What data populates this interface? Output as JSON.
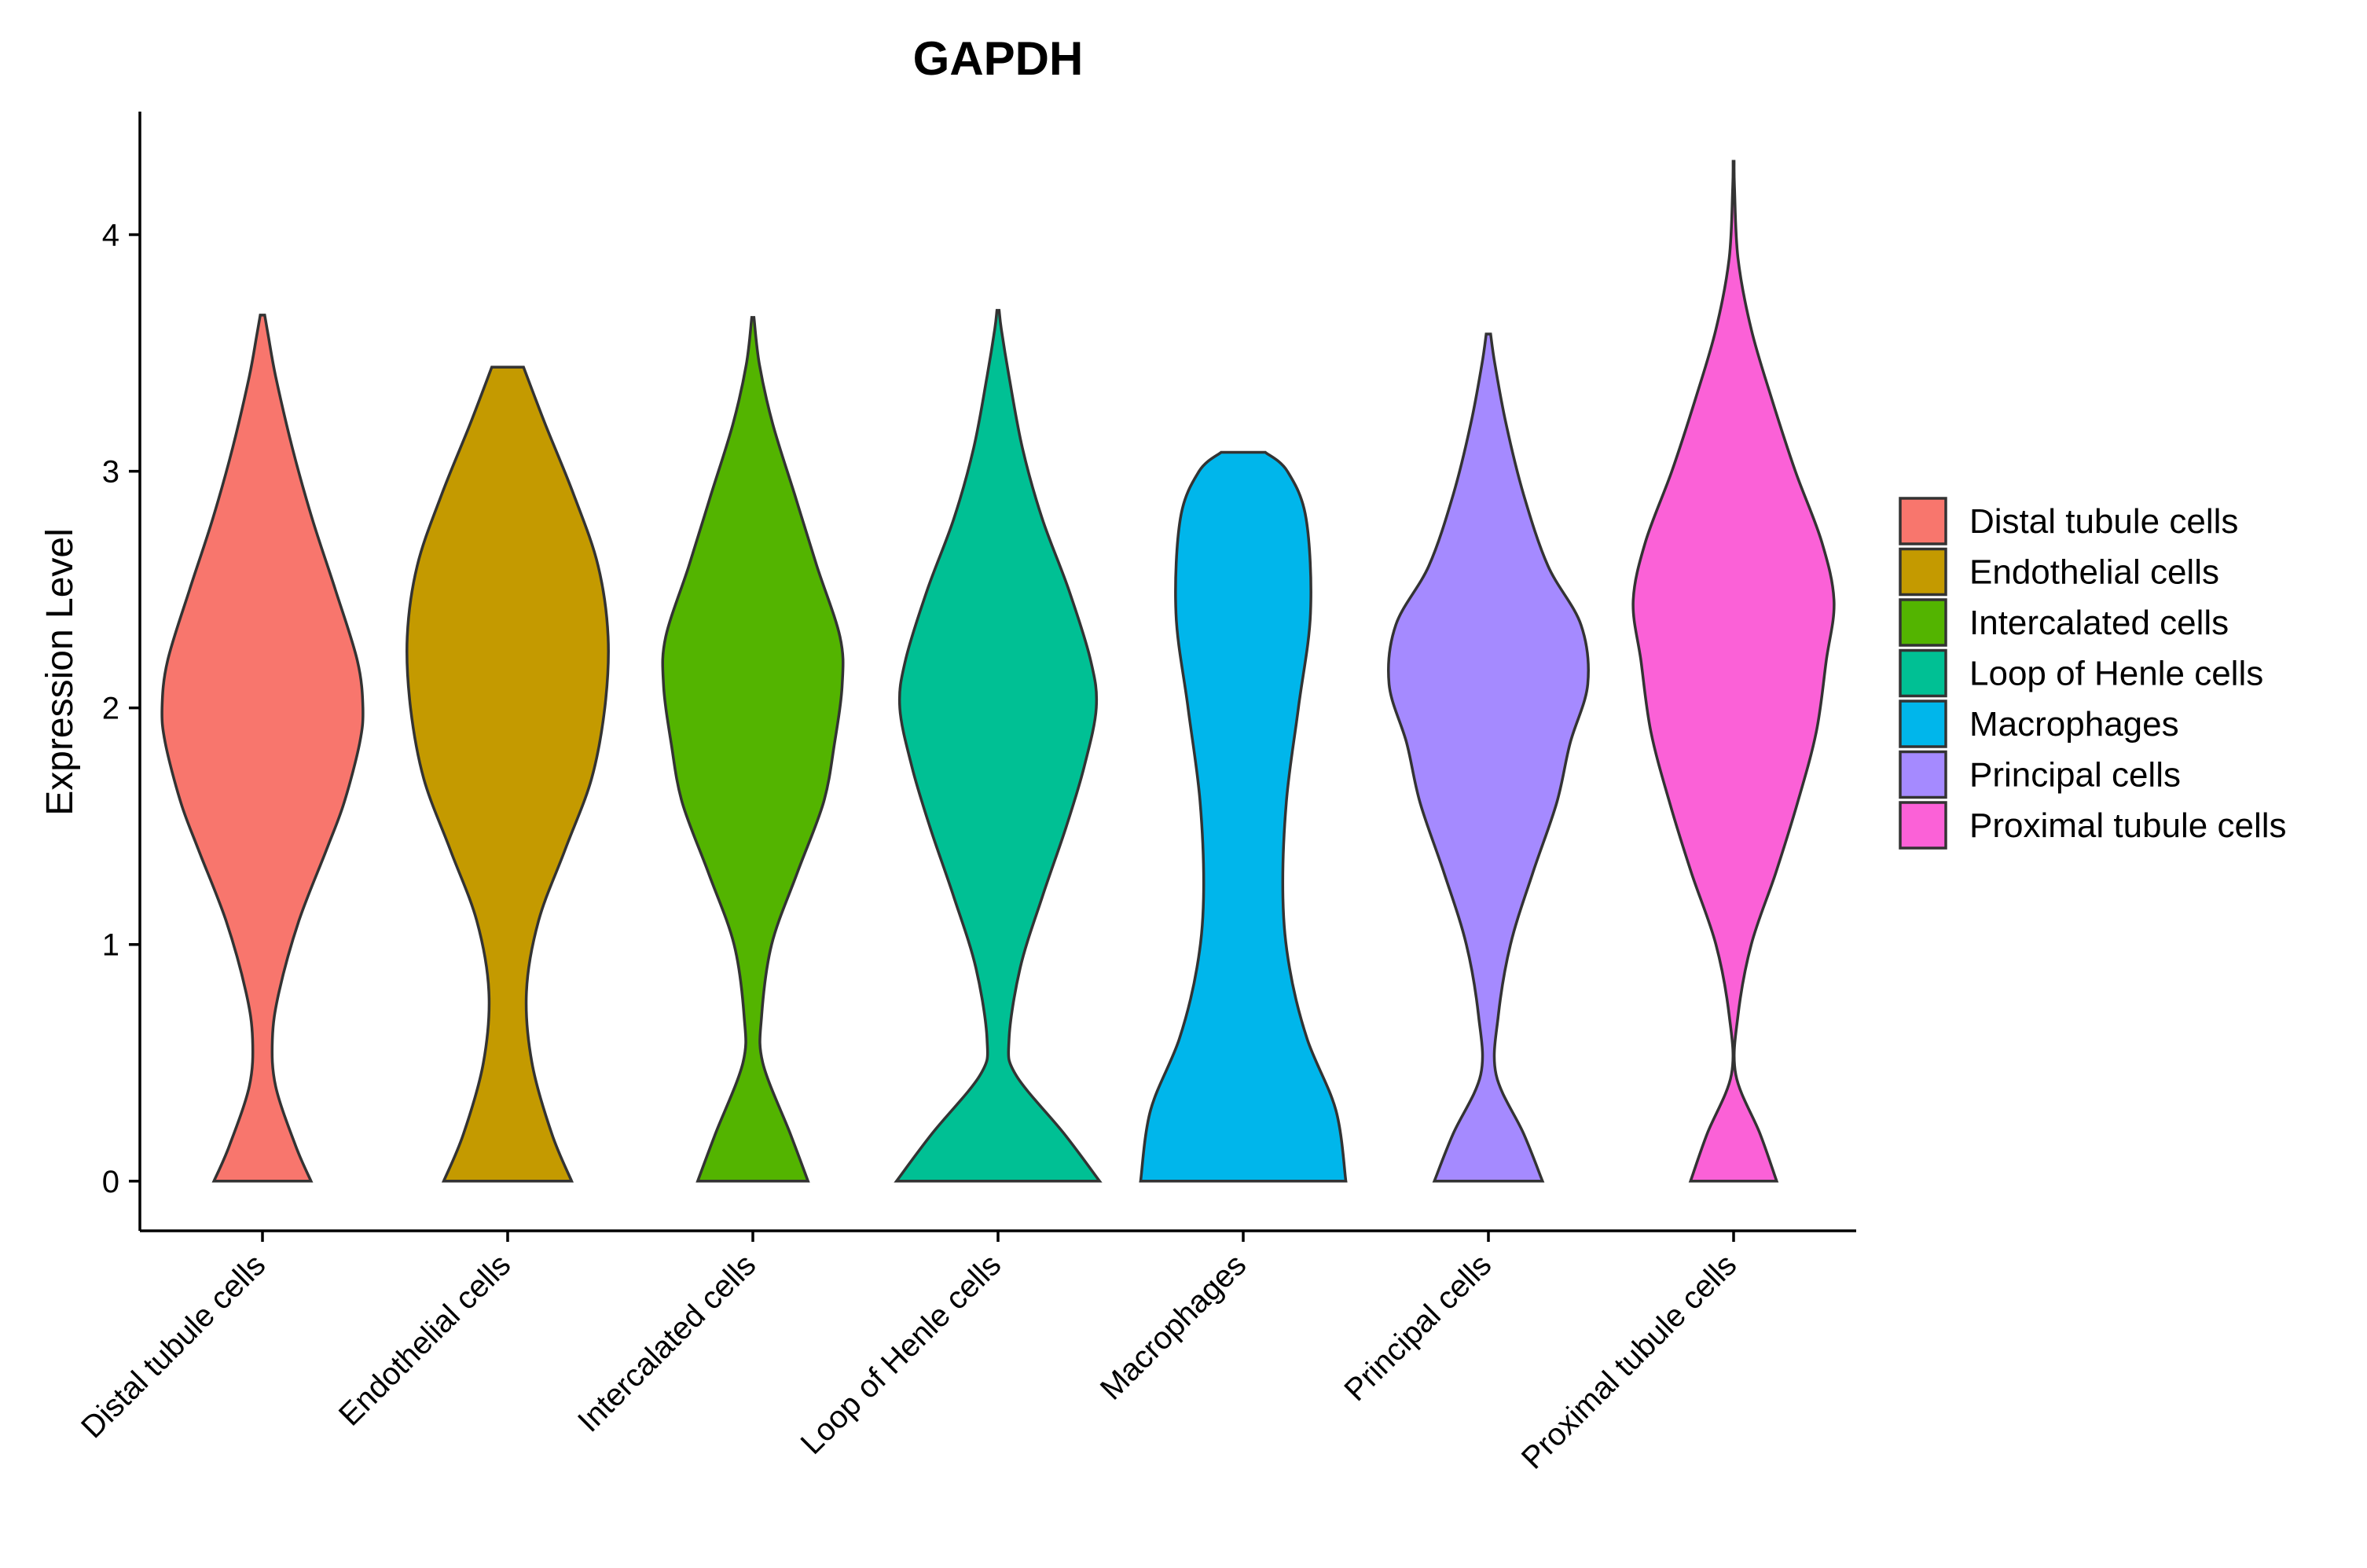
{
  "chart_data": {
    "type": "violin",
    "title": "GAPDH",
    "xlabel": "",
    "ylabel": "Expression Level",
    "ylim": [
      -0.21,
      4.52
    ],
    "yticks": [
      0,
      1,
      2,
      3,
      4
    ],
    "legend": {
      "position": "right",
      "title": ""
    },
    "categories": [
      "Distal tubule cells",
      "Endothelial cells",
      "Intercalated cells",
      "Loop of Henle cells",
      "Macrophages",
      "Principal cells",
      "Proximal tubule cells"
    ],
    "colors": [
      "#F8766D",
      "#C49A00",
      "#53B400",
      "#00C094",
      "#00B6EB",
      "#A58AFF",
      "#FB61D7"
    ],
    "violins": [
      {
        "name": "Distal tubule cells",
        "max": 3.66,
        "profile": [
          [
            0,
            0.22
          ],
          [
            0.15,
            0.15
          ],
          [
            0.4,
            0.06
          ],
          [
            0.6,
            0.045
          ],
          [
            0.8,
            0.075
          ],
          [
            1.1,
            0.165
          ],
          [
            1.4,
            0.29
          ],
          [
            1.6,
            0.37
          ],
          [
            1.85,
            0.44
          ],
          [
            2.0,
            0.455
          ],
          [
            2.2,
            0.43
          ],
          [
            2.5,
            0.33
          ],
          [
            2.8,
            0.225
          ],
          [
            3.1,
            0.135
          ],
          [
            3.4,
            0.06
          ],
          [
            3.58,
            0.025
          ],
          [
            3.66,
            0.01
          ]
        ]
      },
      {
        "name": "Endothelial cells",
        "max": 3.44,
        "profile": [
          [
            0,
            0.29
          ],
          [
            0.2,
            0.2
          ],
          [
            0.5,
            0.11
          ],
          [
            0.8,
            0.085
          ],
          [
            1.1,
            0.14
          ],
          [
            1.4,
            0.26
          ],
          [
            1.7,
            0.38
          ],
          [
            2.0,
            0.44
          ],
          [
            2.3,
            0.455
          ],
          [
            2.6,
            0.41
          ],
          [
            2.9,
            0.3
          ],
          [
            3.2,
            0.17
          ],
          [
            3.44,
            0.072
          ]
        ]
      },
      {
        "name": "Intercalated cells",
        "max": 3.65,
        "profile": [
          [
            0,
            0.25
          ],
          [
            0.2,
            0.17
          ],
          [
            0.5,
            0.045
          ],
          [
            0.7,
            0.04
          ],
          [
            1.0,
            0.085
          ],
          [
            1.3,
            0.2
          ],
          [
            1.6,
            0.32
          ],
          [
            1.85,
            0.37
          ],
          [
            2.1,
            0.405
          ],
          [
            2.3,
            0.395
          ],
          [
            2.6,
            0.29
          ],
          [
            2.9,
            0.19
          ],
          [
            3.2,
            0.09
          ],
          [
            3.45,
            0.03
          ],
          [
            3.65,
            0.005
          ]
        ]
      },
      {
        "name": "Loop of Henle cells",
        "max": 3.68,
        "profile": [
          [
            0,
            0.46
          ],
          [
            0.2,
            0.3
          ],
          [
            0.45,
            0.08
          ],
          [
            0.6,
            0.05
          ],
          [
            0.9,
            0.1
          ],
          [
            1.2,
            0.2
          ],
          [
            1.5,
            0.31
          ],
          [
            1.75,
            0.39
          ],
          [
            2.0,
            0.445
          ],
          [
            2.2,
            0.42
          ],
          [
            2.5,
            0.32
          ],
          [
            2.8,
            0.2
          ],
          [
            3.1,
            0.11
          ],
          [
            3.4,
            0.05
          ],
          [
            3.6,
            0.015
          ],
          [
            3.68,
            0.005
          ]
        ]
      },
      {
        "name": "Macrophages",
        "max": 3.08,
        "profile": [
          [
            0,
            0.465
          ],
          [
            0.3,
            0.42
          ],
          [
            0.6,
            0.29
          ],
          [
            0.9,
            0.21
          ],
          [
            1.2,
            0.18
          ],
          [
            1.6,
            0.195
          ],
          [
            2.0,
            0.25
          ],
          [
            2.4,
            0.305
          ],
          [
            2.8,
            0.285
          ],
          [
            3.0,
            0.2
          ],
          [
            3.08,
            0.1
          ]
        ]
      },
      {
        "name": "Principal cells",
        "max": 3.58,
        "profile": [
          [
            0,
            0.245
          ],
          [
            0.2,
            0.16
          ],
          [
            0.45,
            0.035
          ],
          [
            0.7,
            0.045
          ],
          [
            1.0,
            0.1
          ],
          [
            1.3,
            0.2
          ],
          [
            1.6,
            0.31
          ],
          [
            1.85,
            0.37
          ],
          [
            2.1,
            0.45
          ],
          [
            2.35,
            0.42
          ],
          [
            2.6,
            0.27
          ],
          [
            2.9,
            0.16
          ],
          [
            3.2,
            0.08
          ],
          [
            3.45,
            0.03
          ],
          [
            3.58,
            0.01
          ]
        ]
      },
      {
        "name": "Proximal tubule cells",
        "max": 4.31,
        "profile": [
          [
            0,
            0.195
          ],
          [
            0.2,
            0.12
          ],
          [
            0.45,
            0.01
          ],
          [
            0.7,
            0.02
          ],
          [
            1.0,
            0.08
          ],
          [
            1.3,
            0.19
          ],
          [
            1.6,
            0.29
          ],
          [
            1.9,
            0.375
          ],
          [
            2.2,
            0.42
          ],
          [
            2.45,
            0.455
          ],
          [
            2.7,
            0.4
          ],
          [
            3.0,
            0.28
          ],
          [
            3.3,
            0.175
          ],
          [
            3.6,
            0.08
          ],
          [
            3.9,
            0.02
          ],
          [
            4.2,
            0.004
          ],
          [
            4.31,
            0.002
          ]
        ]
      }
    ]
  }
}
